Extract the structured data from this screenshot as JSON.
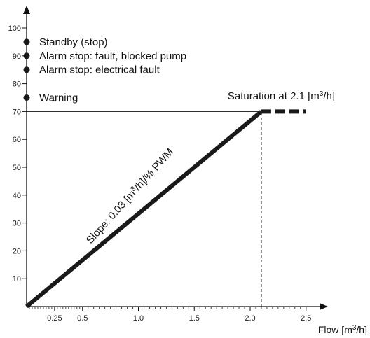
{
  "chart_data": {
    "type": "line",
    "title": "",
    "xlabel": "Flow [m",
    "xlabel_sup": "3",
    "xlabel_tail": "/h]",
    "ylabel": "",
    "xlim": [
      0,
      2.65
    ],
    "ylim": [
      0,
      108
    ],
    "x_ticks": [
      {
        "value": 0.25,
        "label": "0.25"
      },
      {
        "value": 0.5,
        "label": "0.5"
      },
      {
        "value": 1.0,
        "label": "1.0"
      },
      {
        "value": 1.5,
        "label": "1.5"
      },
      {
        "value": 2.0,
        "label": "2.0"
      },
      {
        "value": 2.5,
        "label": "2.5"
      }
    ],
    "y_ticks": [
      {
        "value": 10,
        "label": "10"
      },
      {
        "value": 20,
        "label": "20"
      },
      {
        "value": 30,
        "label": "30"
      },
      {
        "value": 40,
        "label": "40"
      },
      {
        "value": 50,
        "label": "50"
      },
      {
        "value": 60,
        "label": "60"
      },
      {
        "value": 70,
        "label": "70"
      },
      {
        "value": 80,
        "label": "80"
      },
      {
        "value": 90,
        "label": "90"
      },
      {
        "value": 100,
        "label": "100"
      }
    ],
    "series": [
      {
        "style": "solid-thick",
        "x": [
          0,
          2.1
        ],
        "y": [
          0,
          70
        ]
      },
      {
        "style": "dashed-thick",
        "x": [
          2.1,
          2.5
        ],
        "y": [
          70,
          70
        ]
      }
    ],
    "guides": {
      "horizontal": {
        "y": 70,
        "x_from": 0,
        "x_to": 2.1
      },
      "vertical": {
        "x": 2.1,
        "y_from": 0,
        "y_to": 70
      }
    },
    "markers": [
      {
        "y": 95,
        "label": "Standby (stop)"
      },
      {
        "y": 90,
        "label": "Alarm stop: fault, blocked pump"
      },
      {
        "y": 85,
        "label": "Alarm stop: electrical fault"
      },
      {
        "y": 75,
        "label": "Warning"
      }
    ],
    "annotations": {
      "slope": {
        "pre": "Slope: 0.03 [m",
        "sup": "3",
        "post": "/h]/% PWM"
      },
      "saturation": {
        "pre": "Saturation at 2.1 [m",
        "sup": "3",
        "post": "/h]"
      }
    },
    "grid": false,
    "colors": {
      "line": "#1a1a1a",
      "axis": "#111111"
    }
  }
}
